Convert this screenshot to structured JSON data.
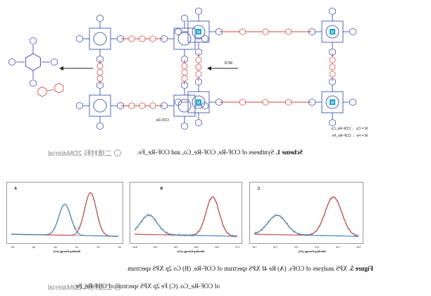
{
  "scheme": {
    "caption_label": "Scheme 1.",
    "caption_text": "Syntheses of COF-Re, COF-Re_Co, and COF-Re_Fe.",
    "cof_label": "COF-Re",
    "reagent_label": "MCl2",
    "legend_co": "M = Co  → COF-Re_Co",
    "legend_fe": "M = Fe  → COF-Re_Fe",
    "metal_symbol": "M",
    "colors": {
      "porphyrin": "#2b3fa8",
      "linker": "#d6403a",
      "metal": "#1aa7c9",
      "monomer": "#3b32c9"
    }
  },
  "watermark": {
    "text": "二维材料2DMaterial",
    "display": "二维材料 2DMaterial"
  },
  "figure5": {
    "caption_label": "Figure 5.",
    "caption_line1": "XPS analyses of COFs. (A) Re 4f XPS spectrum of COF-Re. (B) Co 2p XPS spectrum",
    "caption_line2": "of COF-Re_Co. (C) Fe 2p XPS spectrum of COF-Re_Fe.",
    "panels": [
      {
        "letter": "A",
        "xlabel": "Binding Energy (eV)",
        "ticks": [
          "40",
          "42",
          "44",
          "46",
          "48",
          "50"
        ]
      },
      {
        "letter": "B",
        "xlabel": "Binding Energy (eV)",
        "ticks": [
          "775",
          "780",
          "785",
          "790",
          "795",
          "800"
        ]
      },
      {
        "letter": "C",
        "xlabel": "Binding Energy (eV)",
        "ticks": [
          "705",
          "710",
          "715",
          "720",
          "725",
          "730"
        ]
      }
    ]
  },
  "chart_data": [
    {
      "type": "line",
      "title": "A",
      "xlabel": "Binding Energy (eV)",
      "x_ticks": [
        40,
        42,
        44,
        46,
        48,
        50
      ],
      "xlim": [
        40,
        50
      ],
      "series": [
        {
          "color": "#c9363a",
          "peak": [
            42.6,
            1.0
          ],
          "width": 0.55
        },
        {
          "color": "#2f7fb0",
          "peak": [
            45.0,
            0.72
          ],
          "width": 0.55
        }
      ]
    },
    {
      "type": "line",
      "title": "B",
      "xlabel": "Binding Energy (eV)",
      "x_ticks": [
        775,
        780,
        785,
        790,
        795,
        800
      ],
      "xlim": [
        775,
        800
      ],
      "series": [
        {
          "color": "#c9363a",
          "peak": [
            781.0,
            0.9
          ],
          "width": 1.6
        },
        {
          "color": "#2f7fb0",
          "peak": [
            796.5,
            0.45
          ],
          "width": 2.0
        }
      ]
    },
    {
      "type": "line",
      "title": "C",
      "xlabel": "Binding Energy (eV)",
      "x_ticks": [
        705,
        710,
        715,
        720,
        725,
        730
      ],
      "xlim": [
        705,
        730
      ],
      "series": [
        {
          "color": "#c9363a",
          "peak": [
            711.0,
            0.9
          ],
          "width": 2.0
        },
        {
          "color": "#2f7fb0",
          "peak": [
            724.5,
            0.45
          ],
          "width": 2.2
        }
      ]
    }
  ]
}
